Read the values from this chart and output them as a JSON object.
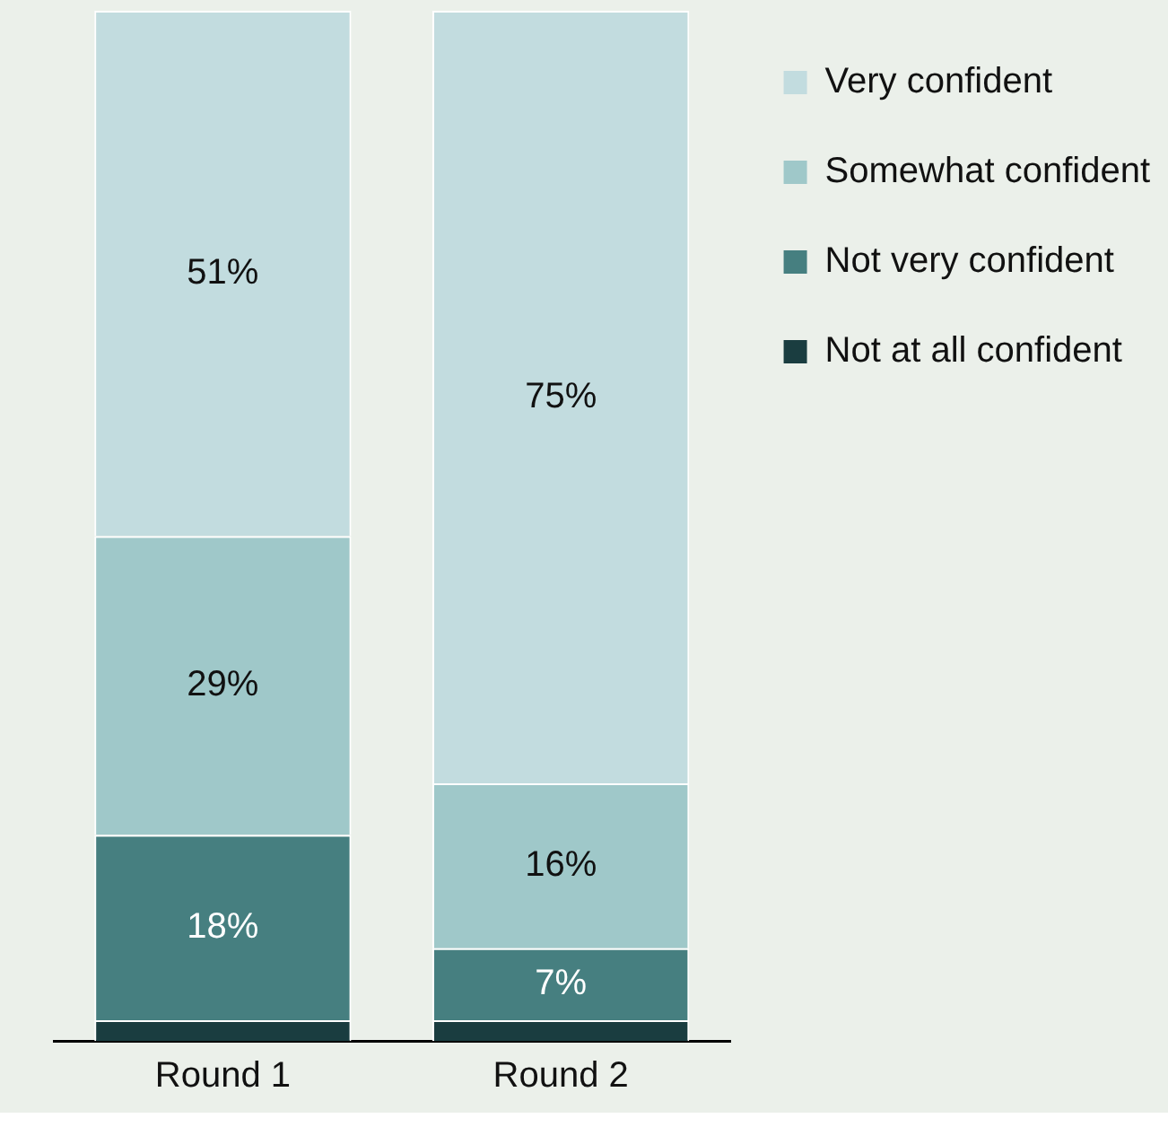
{
  "chart_data": {
    "type": "bar",
    "stacked": true,
    "categories": [
      "Round 1",
      "Round 2"
    ],
    "legend": "top right",
    "grid": false,
    "series": [
      {
        "name": "Not at all confident",
        "color": "#1a3d40",
        "values": [
          2,
          2
        ],
        "value_labels": [
          null,
          null
        ]
      },
      {
        "name": "Not very confident",
        "color": "#467f80",
        "values": [
          18,
          7
        ],
        "value_labels": [
          "18%",
          "7%"
        ]
      },
      {
        "name": "Somewhat confident",
        "color": "#9fc8c9",
        "values": [
          29,
          16
        ],
        "value_labels": [
          "29%",
          "16%"
        ]
      },
      {
        "name": "Very confident",
        "color": "#c2dcdf",
        "values": [
          51,
          75
        ],
        "value_labels": [
          "51%",
          "75%"
        ]
      }
    ]
  }
}
